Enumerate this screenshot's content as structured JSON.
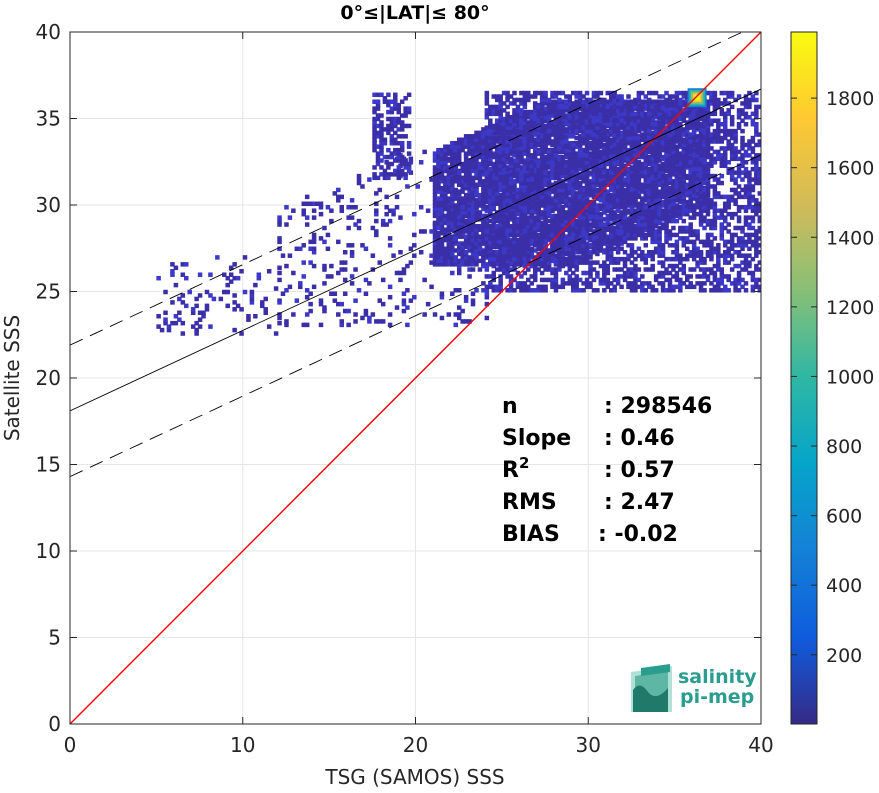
{
  "chart_data": {
    "type": "heatmap",
    "title": "0°≤|LAT|≤ 80°",
    "xlabel": "TSG (SAMOS) SSS",
    "ylabel": "Satellite SSS",
    "xlim": [
      0,
      40
    ],
    "ylim": [
      0,
      40
    ],
    "xticks": [
      0,
      10,
      20,
      30,
      40
    ],
    "yticks": [
      0,
      5,
      10,
      15,
      20,
      25,
      30,
      35,
      40
    ],
    "grid": true,
    "colorbar": {
      "range": [
        1,
        1990
      ],
      "ticks": [
        200,
        400,
        600,
        800,
        1000,
        1200,
        1400,
        1600,
        1800
      ],
      "colormap": "parula",
      "colors": [
        "#352a87",
        "#0f5cdd",
        "#1481d6",
        "#06a4ca",
        "#2eb7a4",
        "#87bf77",
        "#d1bb59",
        "#fec832",
        "#f9fb0e"
      ]
    },
    "series": [
      {
        "kind": "line",
        "style": "solid",
        "color": "#ff0000",
        "x": [
          0,
          40
        ],
        "y": [
          0,
          40
        ]
      },
      {
        "kind": "line",
        "style": "solid",
        "color": "#000000",
        "x": [
          0,
          40
        ],
        "y": [
          18.1,
          36.7
        ]
      },
      {
        "kind": "line",
        "style": "dashed",
        "color": "#000000",
        "x": [
          0,
          40
        ],
        "y": [
          21.9,
          40.5
        ]
      },
      {
        "kind": "line",
        "style": "dashed",
        "color": "#000000",
        "x": [
          0,
          40
        ],
        "y": [
          14.3,
          32.9
        ]
      }
    ],
    "density_regions": [
      {
        "x": [
          21,
          37
        ],
        "y": [
          26.5,
          36
        ],
        "count_level": "high"
      },
      {
        "x": [
          24,
          40
        ],
        "y": [
          25,
          36.5
        ],
        "count_level": "medium"
      },
      {
        "x": [
          12,
          24
        ],
        "y": [
          23,
          33
        ],
        "count_level": "sparse"
      },
      {
        "x": [
          17.5,
          19.5
        ],
        "y": [
          31.5,
          36.5
        ],
        "count_level": "medium"
      },
      {
        "x": [
          5,
          12
        ],
        "y": [
          22.5,
          27
        ],
        "count_level": "sparse"
      }
    ],
    "hotspot": {
      "x": 36.3,
      "y": 36.2,
      "count": 1990
    },
    "stats": [
      {
        "label": "n",
        "value": ": 298546"
      },
      {
        "label": "Slope",
        "value": ": 0.46"
      },
      {
        "label": "R",
        "sup": "2",
        "value": ": 0.57"
      },
      {
        "label": "RMS",
        "value": ": 2.47"
      },
      {
        "label": "BIAS",
        "value": ": -0.02"
      }
    ]
  },
  "logo": {
    "line1": "salinity",
    "line2": "pi-mep",
    "color": "#2a9d8f"
  }
}
